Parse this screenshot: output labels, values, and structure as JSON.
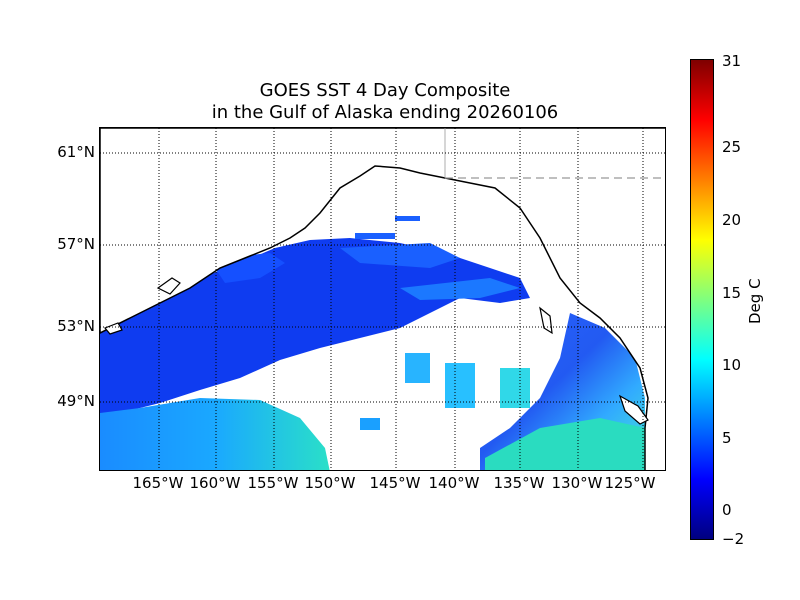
{
  "title": {
    "line1": "GOES SST 4 Day Composite",
    "line2": "in the Gulf of Alaska ending 20260106"
  },
  "latitude_labels": [
    "61°N",
    "57°N",
    "53°N",
    "49°N"
  ],
  "longitude_labels": [
    "165°W",
    "160°W",
    "155°W",
    "150°W",
    "145°W",
    "140°W",
    "135°W",
    "130°W",
    "125°W"
  ],
  "colorbar": {
    "label": "Deg C",
    "ticks": [
      "31",
      "25",
      "20",
      "15",
      "10",
      "5",
      "0",
      "−2"
    ],
    "min": -2,
    "max": 31,
    "colormap": "jet"
  },
  "map": {
    "region": "Gulf of Alaska",
    "grid": "dotted",
    "land_color": "#ffffff",
    "coastline_color": "#000000"
  }
}
